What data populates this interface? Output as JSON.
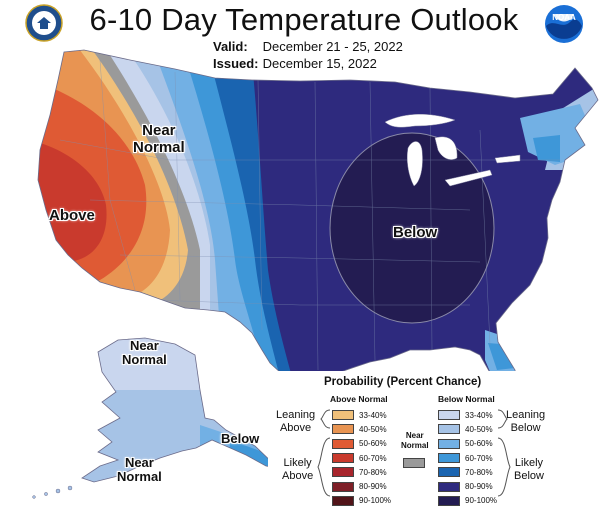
{
  "header": {
    "title": "6-10 Day Temperature Outlook",
    "valid_label": "Valid:",
    "valid_value": "December 21 - 25, 2022",
    "issued_label": "Issued:",
    "issued_value": "December 15, 2022"
  },
  "logos": {
    "left": "doc-seal-icon",
    "right": "noaa-logo-icon",
    "noaa_text": "NOAA"
  },
  "map_labels": {
    "near_normal_west": "Near\nNormal",
    "above_west": "Above",
    "below_east": "Below",
    "near_normal_alaska_north": "Near\nNormal",
    "near_normal_alaska_south": "Near\nNormal",
    "below_alaska": "Below"
  },
  "legend": {
    "title": "Probability (Percent Chance)",
    "above_header": "Above Normal",
    "below_header": "Below Normal",
    "near_header": "Near\nNormal",
    "leaning_above": "Leaning\nAbove",
    "likely_above": "Likely\nAbove",
    "leaning_below": "Leaning\nBelow",
    "likely_below": "Likely\nBelow",
    "above_levels": [
      {
        "label": "33-40%",
        "color": "#f0c07a"
      },
      {
        "label": "40-50%",
        "color": "#e89452"
      },
      {
        "label": "50-60%",
        "color": "#df5a34"
      },
      {
        "label": "60-70%",
        "color": "#c93a2d"
      },
      {
        "label": "70-80%",
        "color": "#a8252c"
      },
      {
        "label": "80-90%",
        "color": "#7e1f27"
      },
      {
        "label": "90-100%",
        "color": "#511419"
      }
    ],
    "below_levels": [
      {
        "label": "33-40%",
        "color": "#c9d6ee"
      },
      {
        "label": "40-50%",
        "color": "#a6c3e6"
      },
      {
        "label": "50-60%",
        "color": "#72b0e4"
      },
      {
        "label": "60-70%",
        "color": "#3e97d8"
      },
      {
        "label": "70-80%",
        "color": "#1a64b0"
      },
      {
        "label": "80-90%",
        "color": "#2e2a7e"
      },
      {
        "label": "90-100%",
        "color": "#231c52"
      }
    ],
    "near_color": "#9a9a9a"
  }
}
